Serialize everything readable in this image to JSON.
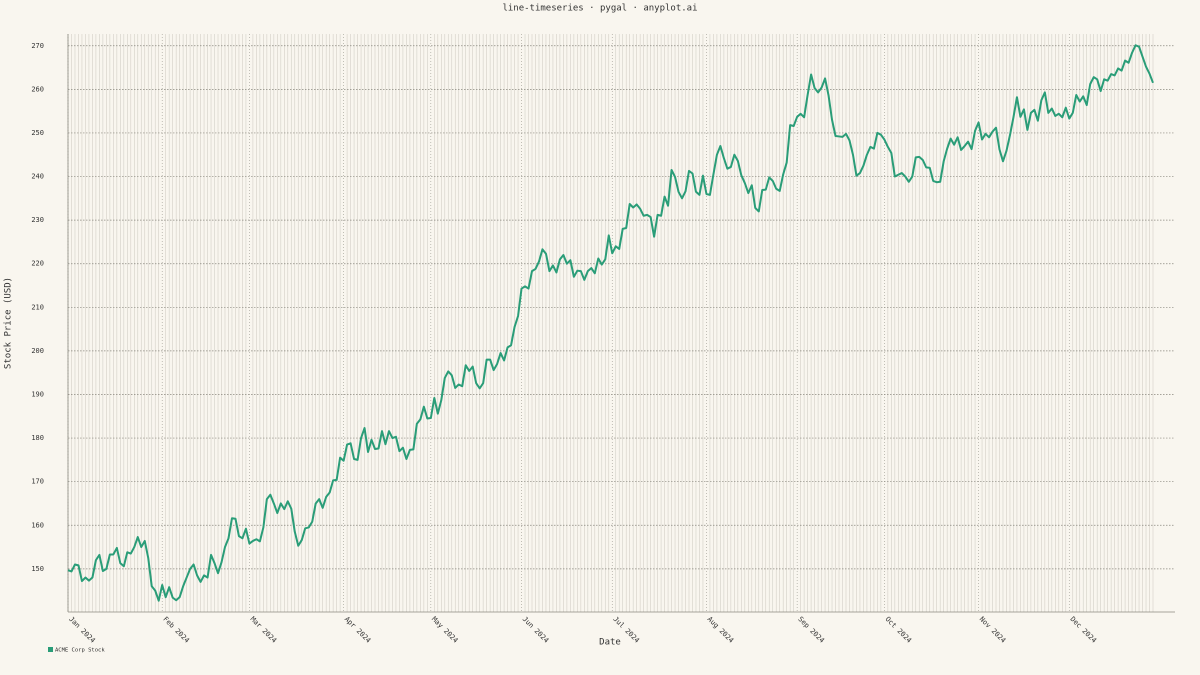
{
  "chart_data": {
    "type": "line",
    "title": "line-timeseries · pygal · anyplot.ai",
    "x_label": "Date",
    "y_label": "Stock Price (USD)",
    "categories": [
      "Jan 2024",
      null,
      null,
      null,
      null,
      null,
      null,
      null,
      null,
      null,
      null,
      null,
      null,
      null,
      null,
      null,
      null,
      null,
      null,
      null,
      null,
      null,
      null,
      null,
      null,
      null,
      null,
      "Feb 2024",
      null,
      null,
      null,
      null,
      null,
      null,
      null,
      null,
      null,
      null,
      null,
      null,
      null,
      null,
      null,
      null,
      null,
      null,
      null,
      null,
      null,
      null,
      null,
      null,
      "Mar 2024",
      null,
      null,
      null,
      null,
      null,
      null,
      null,
      null,
      null,
      null,
      null,
      null,
      null,
      null,
      null,
      null,
      null,
      null,
      null,
      null,
      null,
      null,
      null,
      null,
      null,
      null,
      "Apr 2024",
      null,
      null,
      null,
      null,
      null,
      null,
      null,
      null,
      null,
      null,
      null,
      null,
      null,
      null,
      null,
      null,
      null,
      null,
      null,
      null,
      null,
      null,
      null,
      null,
      "May 2024",
      null,
      null,
      null,
      null,
      null,
      null,
      null,
      null,
      null,
      null,
      null,
      null,
      null,
      null,
      null,
      null,
      null,
      null,
      null,
      null,
      null,
      null,
      null,
      null,
      null,
      "Jun 2024",
      null,
      null,
      null,
      null,
      null,
      null,
      null,
      null,
      null,
      null,
      null,
      null,
      null,
      null,
      null,
      null,
      null,
      null,
      null,
      null,
      null,
      null,
      null,
      null,
      null,
      "Jul 2024",
      null,
      null,
      null,
      null,
      null,
      null,
      null,
      null,
      null,
      null,
      null,
      null,
      null,
      null,
      null,
      null,
      null,
      null,
      null,
      null,
      null,
      null,
      null,
      null,
      null,
      null,
      "Aug 2024",
      null,
      null,
      null,
      null,
      null,
      null,
      null,
      null,
      null,
      null,
      null,
      null,
      null,
      null,
      null,
      null,
      null,
      null,
      null,
      null,
      null,
      null,
      null,
      null,
      null,
      "Sep 2024",
      null,
      null,
      null,
      null,
      null,
      null,
      null,
      null,
      null,
      null,
      null,
      null,
      null,
      null,
      null,
      null,
      null,
      null,
      null,
      null,
      null,
      null,
      null,
      null,
      "Oct 2024",
      null,
      null,
      null,
      null,
      null,
      null,
      null,
      null,
      null,
      null,
      null,
      null,
      null,
      null,
      null,
      null,
      null,
      null,
      null,
      null,
      null,
      null,
      null,
      null,
      null,
      null,
      "Nov 2024",
      null,
      null,
      null,
      null,
      null,
      null,
      null,
      null,
      null,
      null,
      null,
      null,
      null,
      null,
      null,
      null,
      null,
      null,
      null,
      null,
      null,
      null,
      null,
      null,
      null,
      "Dec 2024",
      null,
      null,
      null,
      null,
      null,
      null,
      null,
      null,
      null,
      null,
      null,
      null,
      null,
      null,
      null,
      null,
      null,
      null,
      null,
      null,
      null,
      null,
      null,
      null
    ],
    "series": [
      {
        "name": "ACME Corp Stock",
        "color": "#2a9d78",
        "values": [
          149.7,
          149.4,
          151,
          150.8,
          147.2,
          148,
          147.3,
          148,
          152,
          153.2,
          149.5,
          150,
          153.3,
          153.3,
          154.8,
          151.3,
          150.6,
          153.8,
          153.5,
          155,
          157.3,
          155,
          156.4,
          152.5,
          146,
          145,
          142.7,
          146.3,
          143.5,
          145.8,
          143.4,
          142.8,
          143.5,
          146,
          148,
          150,
          151,
          148.5,
          147,
          148.5,
          148,
          153.2,
          151.3,
          149,
          151.5,
          155,
          157,
          161.6,
          161.5,
          157.5,
          157,
          159.2,
          155.8,
          156.4,
          156.8,
          156.3,
          159.5,
          166,
          167,
          165,
          162.8,
          165,
          163.7,
          165.5,
          163.8,
          158.5,
          155.3,
          156.6,
          159.3,
          159.5,
          160.8,
          165,
          166,
          164,
          166.5,
          167.5,
          170.3,
          170.4,
          175.5,
          174.8,
          178.5,
          178.8,
          175.2,
          175,
          180,
          182.3,
          176.8,
          179.6,
          177.5,
          177.6,
          181.6,
          178.6,
          181.6,
          180,
          180.3,
          177,
          177.8,
          175.2,
          177.3,
          177.4,
          183.3,
          184.3,
          187.2,
          184.5,
          184.6,
          189.2,
          185.6,
          188.7,
          193.8,
          195.3,
          194.4,
          191.5,
          192.3,
          191.9,
          196.7,
          195.4,
          196.4,
          192.6,
          191.4,
          192.6,
          198,
          198,
          195.6,
          197,
          199.5,
          197.8,
          200.8,
          201.3,
          205.5,
          208,
          214.3,
          214.8,
          214.3,
          218.3,
          218.8,
          220.5,
          223.3,
          222.3,
          218.3,
          219.6,
          218,
          221,
          222,
          220,
          220.8,
          217,
          218.4,
          218.3,
          216.3,
          218.3,
          219,
          217.8,
          221.2,
          219.8,
          221,
          226.5,
          222.4,
          224,
          223.4,
          228,
          228.2,
          233.7,
          232.9,
          233.6,
          232.6,
          231,
          231.2,
          230.7,
          226.2,
          231.2,
          231,
          235.4,
          233.3,
          241.5,
          239.9,
          236.5,
          235,
          236.6,
          241.3,
          240.7,
          236.5,
          235.8,
          240.2,
          236,
          235.8,
          240.5,
          245,
          247,
          244.2,
          241.8,
          242.2,
          245,
          243.6,
          240.3,
          238.5,
          236.2,
          238,
          232.8,
          232,
          236.9,
          237,
          239.8,
          239,
          237.2,
          236.7,
          240.5,
          243.2,
          251.8,
          251.6,
          253.7,
          254.4,
          253.6,
          258.7,
          263.4,
          260.3,
          259.3,
          260.4,
          262.5,
          258.6,
          253,
          249.3,
          249.2,
          249.1,
          249.8,
          248.3,
          245,
          240.2,
          240.8,
          242.5,
          245,
          246.8,
          246.4,
          250,
          249.6,
          248.5,
          246.8,
          245.4,
          240,
          240.4,
          240.8,
          240,
          238.8,
          240,
          244.4,
          244.5,
          243.8,
          242.1,
          242,
          239,
          238.7,
          238.8,
          243.5,
          246.4,
          248.7,
          247.3,
          249,
          246.1,
          247,
          248,
          246.3,
          250.5,
          252.4,
          248.5,
          249.8,
          249,
          250.3,
          251.2,
          246.2,
          243.5,
          245.9,
          249.5,
          253.6,
          258.2,
          253.7,
          255.4,
          250.7,
          254.6,
          255.3,
          252.8,
          257.5,
          259.3,
          254.6,
          255.6,
          253.9,
          254.4,
          253.6,
          255.8,
          253.3,
          254.6,
          258.7,
          257.2,
          258.4,
          256.4,
          261.2,
          262.8,
          262.3,
          259.6,
          262.3,
          262,
          263.5,
          263.2,
          264.8,
          264.3,
          266.6,
          266.1,
          268.4,
          270.1,
          269.8,
          267.5,
          265.2,
          263.6,
          261.5
        ]
      }
    ],
    "ylim": [
      140.1,
      272.7
    ],
    "yticks": [
      150,
      160,
      170,
      180,
      190,
      200,
      210,
      220,
      230,
      240,
      250,
      260,
      270
    ],
    "grid": true
  }
}
